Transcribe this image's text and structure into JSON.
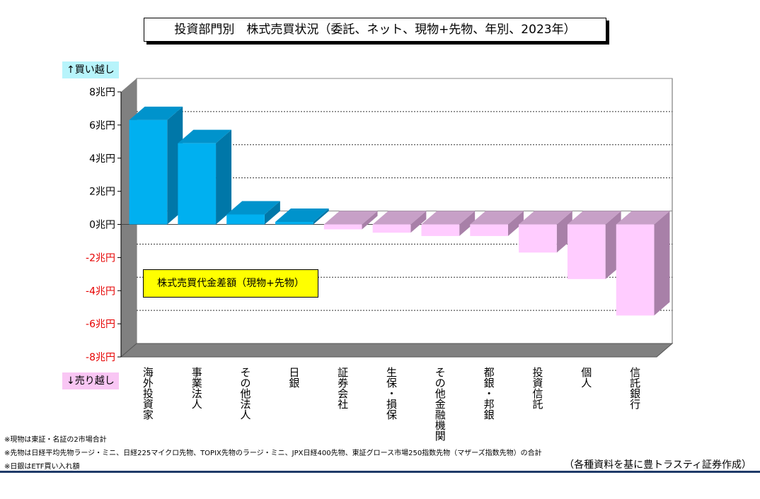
{
  "title": "投資部門別　株式売買状況（委託、ネット、現物+先物、年別、2023年）",
  "buy_label": "↑買い越し",
  "sell_label": "↓売り越し",
  "legend_label": "株式売買代金差額（現物+先物）",
  "footnotes": [
    "※現物は東証・名証の2市場合計",
    "※先物は日経平均先物ラージ・ミニ、日経225マイクロ先物、TOPIX先物のラージ・ミニ、JPX日経400先物、東証グロース市場250指数先物（マザーズ指数先物）の合計",
    "※日銀はETF買い入れ額"
  ],
  "source": "（各種資料を基に豊トラスティ証券作成）",
  "colors": {
    "positive_front": "#00b0f0",
    "positive_side": "#0077a8",
    "positive_top": "#0093cc",
    "negative_front": "#ffccff",
    "negative_side": "#a880a8",
    "negative_top": "#c7a0c7",
    "negative_tick": "#e60000"
  },
  "chart_data": {
    "type": "bar",
    "categories": [
      "海外投資家",
      "事業法人",
      "その他法人",
      "日銀",
      "証券会社",
      "生保・損保",
      "その他金融機関",
      "都銀・邦銀",
      "投資信託",
      "個人",
      "信託銀行"
    ],
    "values": [
      6.3,
      4.9,
      0.6,
      0.15,
      -0.3,
      -0.5,
      -0.7,
      -0.7,
      -1.7,
      -3.3,
      -5.5
    ],
    "unit": "兆円",
    "ylim": [
      -8,
      8
    ],
    "yticks": [
      {
        "value": 8,
        "label": "8兆円"
      },
      {
        "value": 6,
        "label": "6兆円"
      },
      {
        "value": 4,
        "label": "4兆円"
      },
      {
        "value": 2,
        "label": "2兆円"
      },
      {
        "value": 0,
        "label": "0兆円"
      },
      {
        "value": -2,
        "label": "-2兆円"
      },
      {
        "value": -4,
        "label": "-4兆円"
      },
      {
        "value": -6,
        "label": "-6兆円"
      },
      {
        "value": -8,
        "label": "-8兆円"
      }
    ],
    "grid": true,
    "three_d": true
  }
}
